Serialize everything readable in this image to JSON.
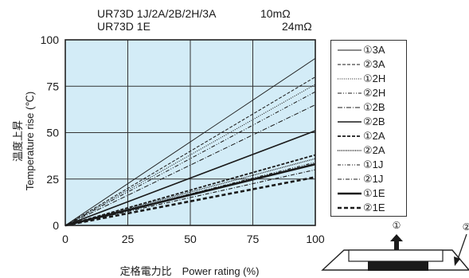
{
  "header": {
    "line1_model": "UR73D 1J/2A/2B/2H/3A",
    "line1_value": "10mΩ",
    "line2_model": "UR73D 1E",
    "line2_value": "24mΩ"
  },
  "colors": {
    "plot_bg": "#d3ecf7",
    "line": "#1a1a1a",
    "grid": "#333333"
  },
  "chart_data": {
    "type": "line",
    "xlabel": "定格電力比　Power rating (%)",
    "ylabel_jp": "温度上昇",
    "ylabel_en": "Temperature rise (℃)",
    "xlim": [
      0,
      100
    ],
    "ylim": [
      0,
      100
    ],
    "xticks": [
      "0",
      "25",
      "50",
      "75",
      "100"
    ],
    "yticks": [
      "0",
      "25",
      "50",
      "75",
      "100"
    ],
    "grid": true,
    "legend_position": "right",
    "series": [
      {
        "name": "①3A",
        "style": "thin-solid",
        "x": [
          0,
          100
        ],
        "y": [
          0,
          90
        ]
      },
      {
        "name": "②3A",
        "style": "dashed",
        "x": [
          0,
          100
        ],
        "y": [
          0,
          80
        ]
      },
      {
        "name": "①2H",
        "style": "dotted",
        "x": [
          0,
          100
        ],
        "y": [
          0,
          76
        ]
      },
      {
        "name": "②2H",
        "style": "dash-dot-dot",
        "x": [
          0,
          100
        ],
        "y": [
          0,
          72
        ]
      },
      {
        "name": "①2B",
        "style": "dash-dot",
        "x": [
          0,
          100
        ],
        "y": [
          0,
          65
        ]
      },
      {
        "name": "②2B",
        "style": "medium-solid",
        "x": [
          0,
          100
        ],
        "y": [
          0,
          51
        ]
      },
      {
        "name": "①2A",
        "style": "bold-dashed",
        "x": [
          0,
          100
        ],
        "y": [
          0,
          38
        ]
      },
      {
        "name": "②2A",
        "style": "dense-dotted",
        "x": [
          0,
          100
        ],
        "y": [
          0,
          36
        ]
      },
      {
        "name": "①1J",
        "style": "dash-dot-dot-2",
        "x": [
          0,
          100
        ],
        "y": [
          0,
          34
        ]
      },
      {
        "name": "②1J",
        "style": "dash-dot-2",
        "x": [
          0,
          100
        ],
        "y": [
          0,
          30
        ]
      },
      {
        "name": "①1E",
        "style": "thick-solid",
        "x": [
          0,
          100
        ],
        "y": [
          0,
          33
        ]
      },
      {
        "name": "②1E",
        "style": "thick-dashed",
        "x": [
          0,
          100
        ],
        "y": [
          0,
          26
        ]
      }
    ]
  },
  "diagram": {
    "label1": "①",
    "label2": "②"
  }
}
